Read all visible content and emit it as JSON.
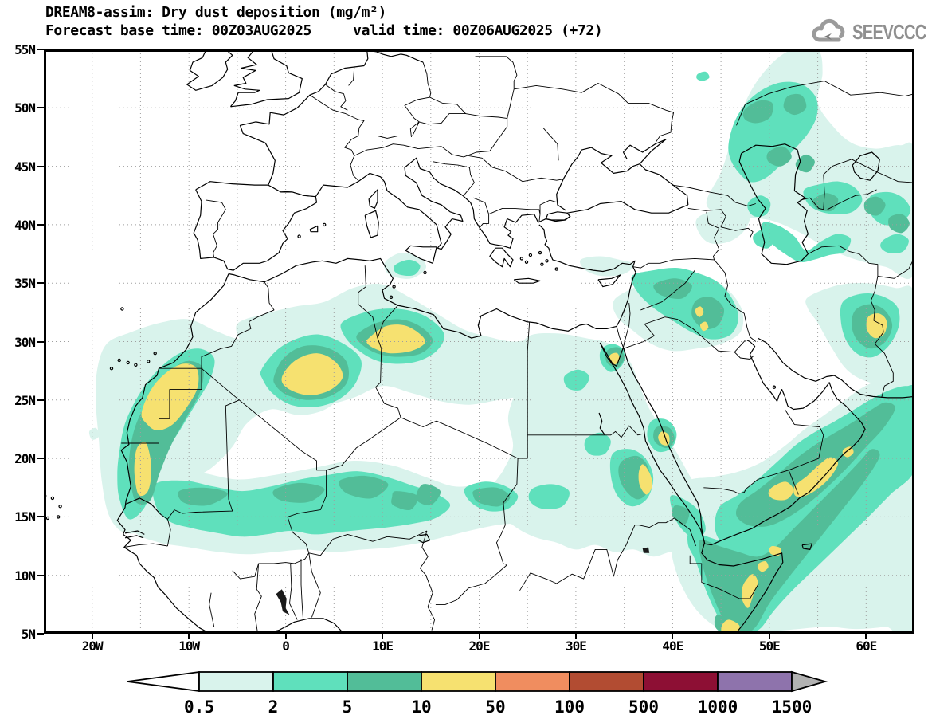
{
  "header": {
    "title_line1": "DREAM8-assim: Dry dust deposition (mg/m²)",
    "title_line2": "Forecast base time: 00Z03AUG2025     valid time: 00Z06AUG2025 (+72)"
  },
  "logo": {
    "text": "SEEVCCC"
  },
  "map": {
    "lat_tick_labels": [
      "55N",
      "50N",
      "45N",
      "40N",
      "35N",
      "30N",
      "25N",
      "20N",
      "15N",
      "10N",
      "5N"
    ],
    "lat_tick_values": [
      55,
      50,
      45,
      40,
      35,
      30,
      25,
      20,
      15,
      10,
      5
    ],
    "lon_tick_labels": [
      "20W",
      "10W",
      "0",
      "10E",
      "20E",
      "30E",
      "40E",
      "50E",
      "60E"
    ],
    "lon_tick_values": [
      -20,
      -10,
      0,
      10,
      20,
      30,
      40,
      50,
      60
    ]
  },
  "colorbar": {
    "labels": [
      "0.5",
      "2",
      "5",
      "10",
      "50",
      "100",
      "500",
      "1000",
      "1500"
    ],
    "segment_colors": [
      "#ffffff",
      "#d9f3ec",
      "#5fe0bc",
      "#52bd98",
      "#f6e170",
      "#f08d5f",
      "#b24c32",
      "#8d0f34",
      "#8e73ac",
      "#b2b2b2"
    ],
    "outline_color": "#000000"
  }
}
